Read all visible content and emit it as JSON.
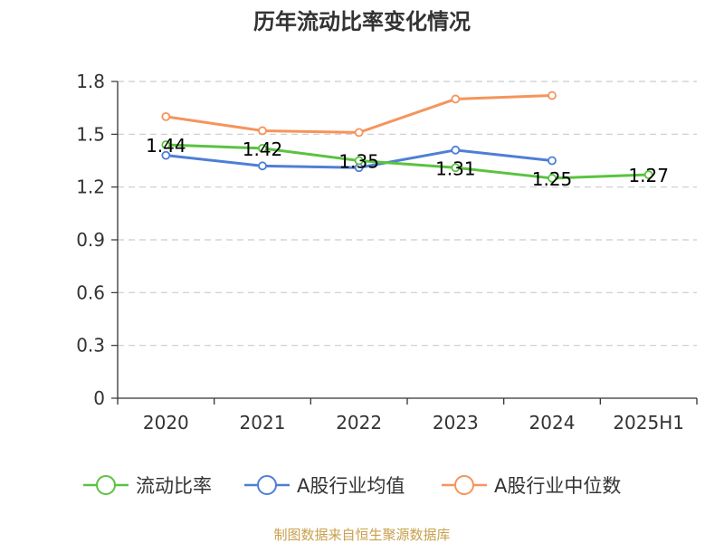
{
  "chart_data": {
    "type": "line",
    "title": "历年流动比率变化情况",
    "categories": [
      "2020",
      "2021",
      "2022",
      "2023",
      "2024",
      "2025H1"
    ],
    "ylim": [
      0,
      1.8
    ],
    "yticks": [
      "0",
      "0.3",
      "0.6",
      "0.9",
      "1.2",
      "1.5",
      "1.8"
    ],
    "grid": true,
    "legend_position": "bottom",
    "series": [
      {
        "name": "流动比率",
        "color": "#5ac33f",
        "values": [
          1.44,
          1.42,
          1.35,
          1.31,
          1.25,
          1.27
        ],
        "labels": [
          "1.44",
          "1.42",
          "1.35",
          "1.31",
          "1.25",
          "1.27"
        ]
      },
      {
        "name": "A股行业均值",
        "color": "#4e7fd6",
        "values": [
          1.38,
          1.32,
          1.31,
          1.41,
          1.35,
          null
        ]
      },
      {
        "name": "A股行业中位数",
        "color": "#f5945c",
        "values": [
          1.6,
          1.52,
          1.51,
          1.7,
          1.72,
          null
        ]
      }
    ]
  },
  "source": "制图数据来自恒生聚源数据库"
}
